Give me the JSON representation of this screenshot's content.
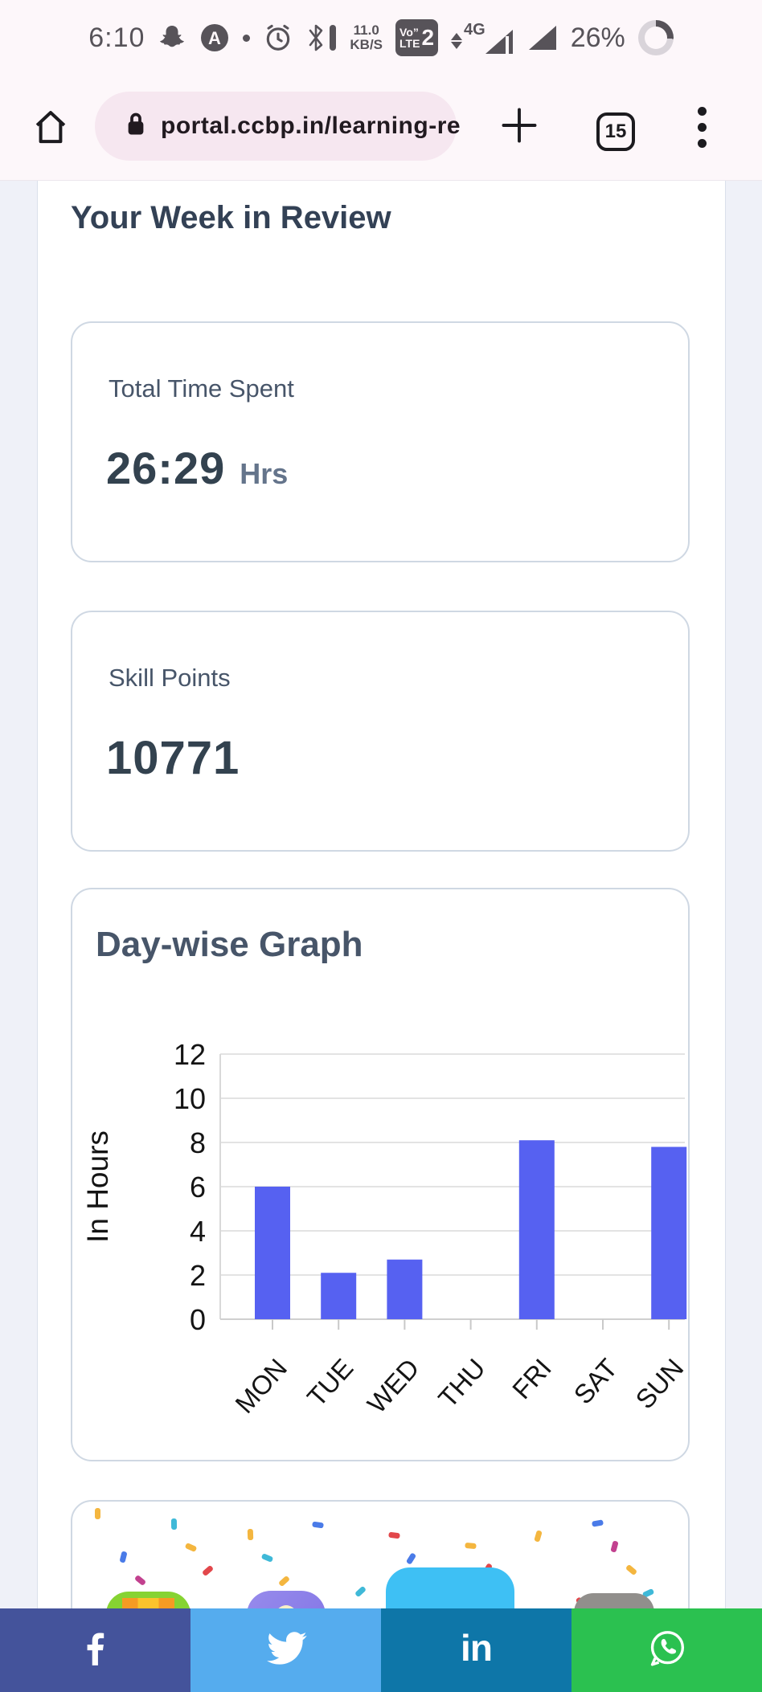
{
  "status_bar": {
    "time": "6:10",
    "data_rate_value": "11.0",
    "data_rate_unit": "KB/S",
    "volte_top": "Vo”",
    "volte_bottom": "LTE",
    "volte_sim": "2",
    "network_type": "4G",
    "battery_percent": "26%",
    "battery_level": 26
  },
  "toolbar": {
    "url": "portal.ccbp.in/learning-re",
    "tab_count": "15"
  },
  "page": {
    "heading": "Your Week in Review",
    "cards": {
      "time_spent": {
        "label": "Total Time Spent",
        "value": "26:29",
        "unit": "Hrs"
      },
      "skill_points": {
        "label": "Skill Points",
        "value": "10771"
      },
      "graph": {
        "title": "Day-wise Graph"
      }
    }
  },
  "chart_data": {
    "type": "bar",
    "title": "Day-wise Graph",
    "categories": [
      "MON",
      "TUE",
      "WED",
      "THU",
      "FRI",
      "SAT",
      "SUN"
    ],
    "values": [
      6,
      2.1,
      2.7,
      0,
      8.1,
      0,
      7.8
    ],
    "xlabel": "",
    "ylabel": "In Hours",
    "ylim": [
      0,
      12
    ],
    "yticks": [
      0,
      2,
      4,
      6,
      8,
      10,
      12
    ],
    "grid": true,
    "legend": "none",
    "bar_color": "#5661F1"
  },
  "social_bar": {
    "items": [
      {
        "id": "facebook",
        "color": "#44539B"
      },
      {
        "id": "twitter",
        "color": "#55ACEE"
      },
      {
        "id": "linkedin",
        "color": "#0E76A8",
        "label": "in"
      },
      {
        "id": "whatsapp",
        "color": "#2BC150"
      }
    ]
  },
  "colors": {
    "bar_accent": "#5661F1",
    "heading_text": "#334155",
    "card_border": "#CFD8E3",
    "chrome_bg": "#FDF7FA",
    "url_pill_bg": "#F6E7F0",
    "page_gutter_bg": "#EFF1F8"
  }
}
